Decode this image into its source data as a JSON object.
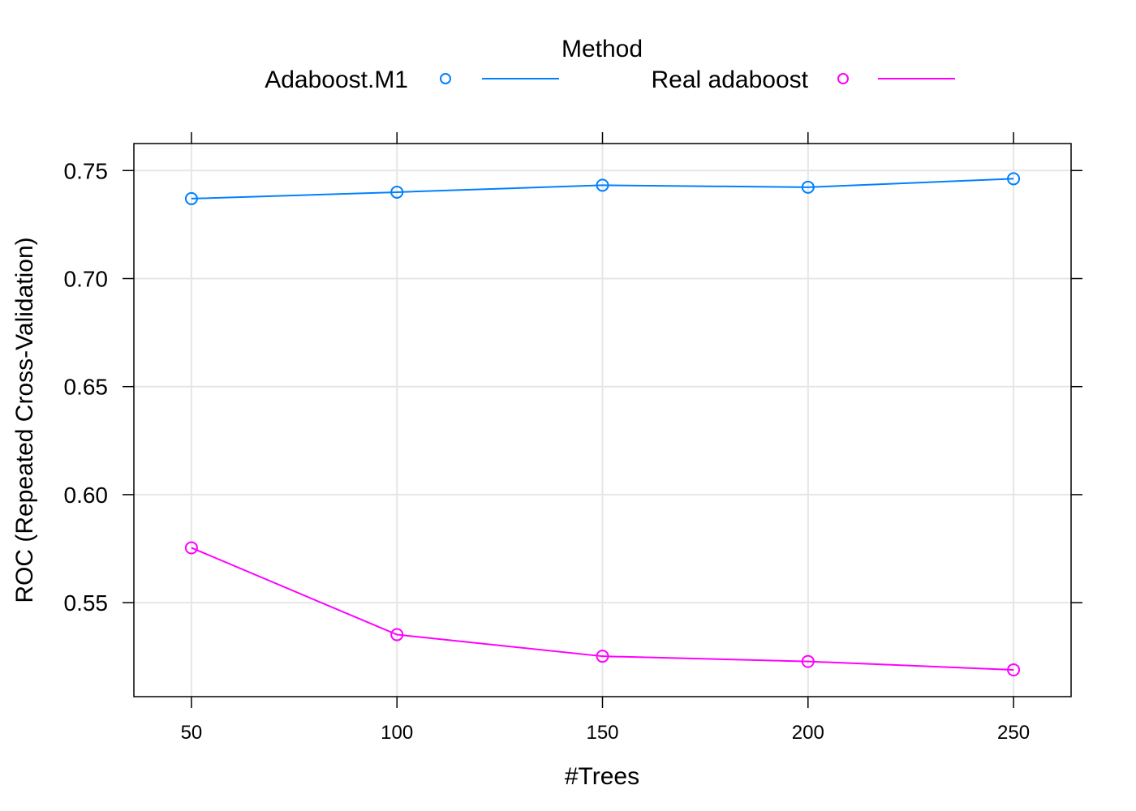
{
  "chart_data": {
    "type": "line",
    "title": "",
    "xlabel": "#Trees",
    "ylabel": "ROC (Repeated Cross-Validation)",
    "legend_title": "Method",
    "legend_position": "top",
    "grid": true,
    "x": [
      50,
      100,
      150,
      200,
      250
    ],
    "xticks": [
      50,
      100,
      150,
      200,
      250
    ],
    "yticks": [
      0.55,
      0.6,
      0.65,
      0.7,
      0.75
    ],
    "xlim": [
      36,
      264
    ],
    "ylim": [
      0.5065,
      0.7625
    ],
    "series": [
      {
        "name": "Adaboost.M1",
        "color": "#0080ff",
        "values": [
          0.737,
          0.74,
          0.7432,
          0.7423,
          0.7462
        ]
      },
      {
        "name": "Real adaboost",
        "color": "#ff00ff",
        "values": [
          0.5754,
          0.5352,
          0.5252,
          0.5228,
          0.5189
        ]
      }
    ]
  }
}
